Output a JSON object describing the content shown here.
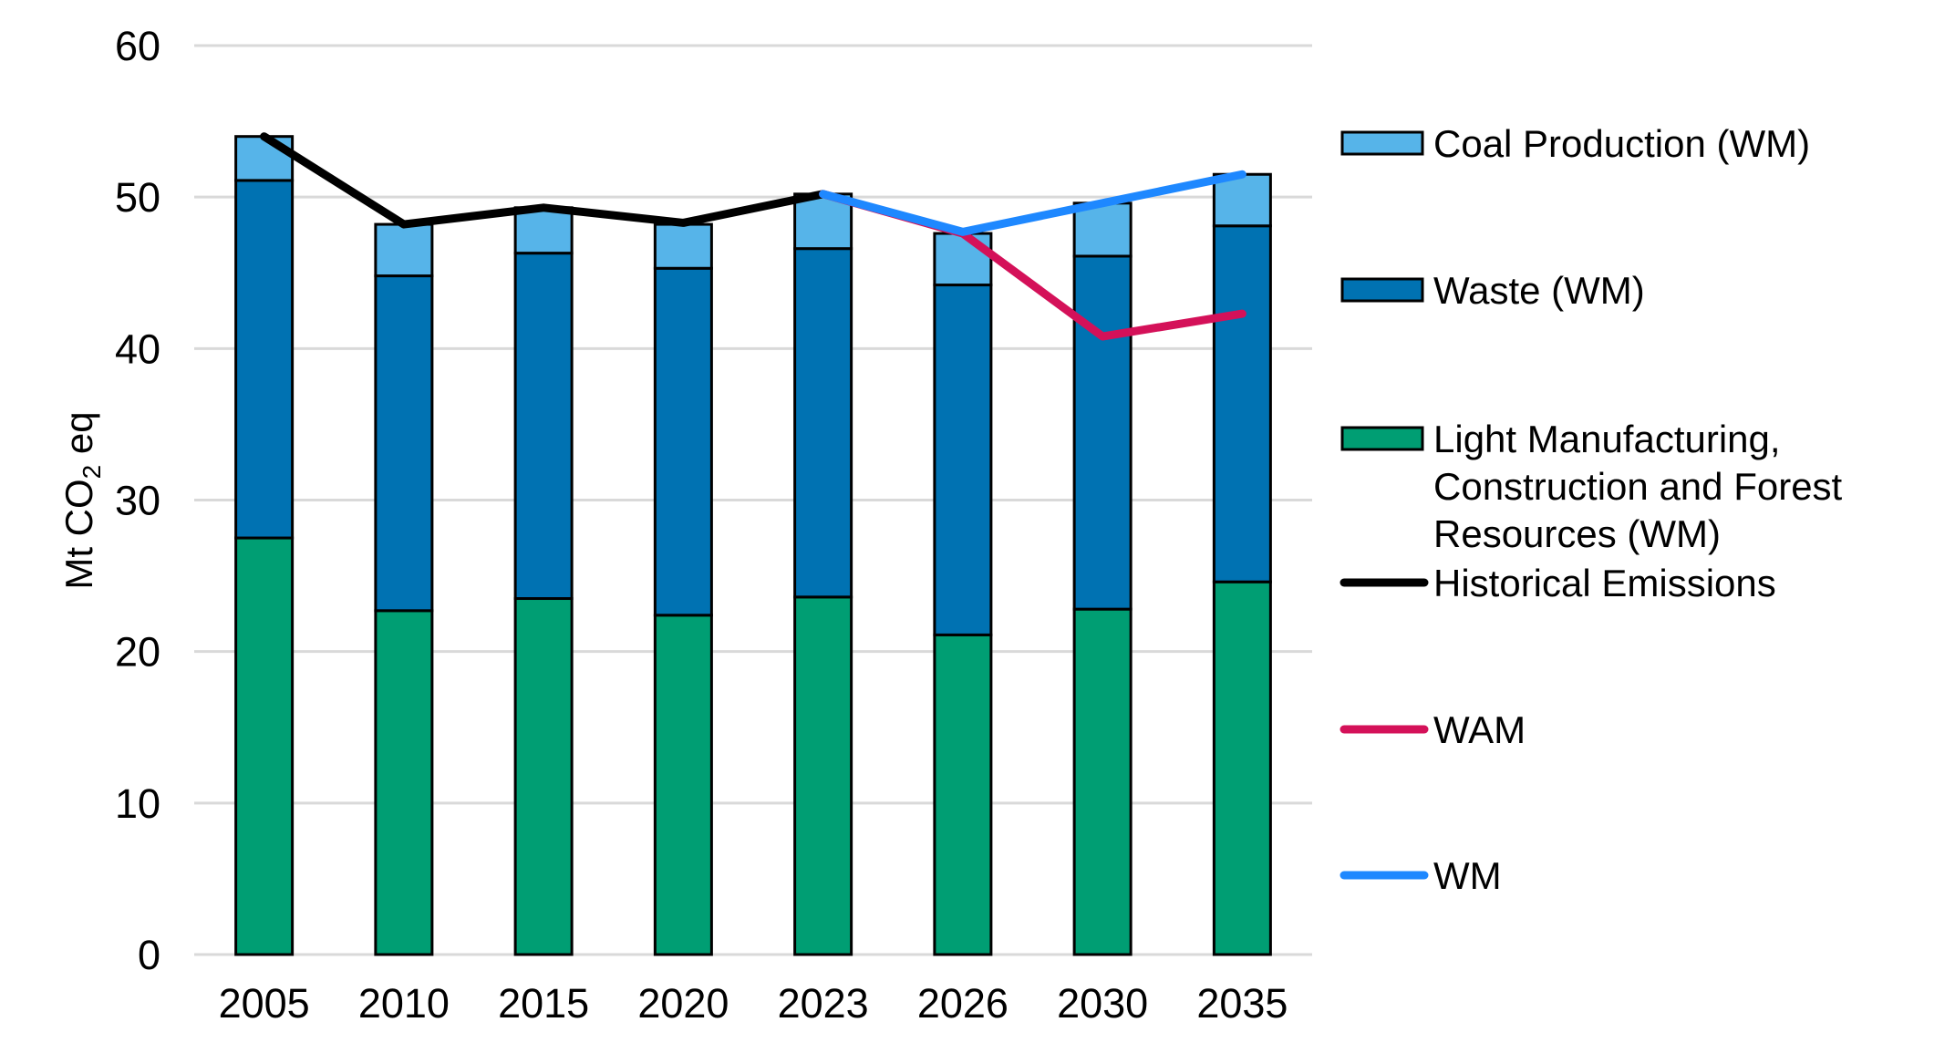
{
  "chart_data": {
    "type": "bar",
    "stacked": true,
    "title": "",
    "xlabel": "",
    "ylabel": {
      "prefix": "Mt CO",
      "subscript": "2",
      "suffix": " eq"
    },
    "ylim": [
      0,
      60
    ],
    "yticks": [
      0,
      10,
      20,
      30,
      40,
      50,
      60
    ],
    "grid": true,
    "legend_position": "right",
    "categories": [
      "2005",
      "2010",
      "2015",
      "2020",
      "2023",
      "2026",
      "2030",
      "2035"
    ],
    "series": [
      {
        "name": "Light Manufacturing, Construction and Forest Resources (WM)",
        "kind": "bar",
        "color": "#009E73",
        "values": [
          27.5,
          22.7,
          23.5,
          22.4,
          23.6,
          21.1,
          22.8,
          24.6
        ]
      },
      {
        "name": "Waste (WM)",
        "kind": "bar",
        "color": "#0072B2",
        "values": [
          23.6,
          22.1,
          22.8,
          22.9,
          23.0,
          23.1,
          23.3,
          23.5
        ]
      },
      {
        "name": "Coal Production (WM)",
        "kind": "bar",
        "color": "#56B4E9",
        "values": [
          2.9,
          3.4,
          3.0,
          2.9,
          3.6,
          3.4,
          3.5,
          3.4
        ]
      },
      {
        "name": "Historical Emissions",
        "kind": "line",
        "color": "#000000",
        "values": [
          54.0,
          48.2,
          49.3,
          48.3,
          50.2,
          null,
          null,
          null
        ]
      },
      {
        "name": "WAM",
        "kind": "line",
        "color": "#D41159",
        "values": [
          null,
          null,
          null,
          null,
          50.2,
          47.6,
          40.8,
          42.3
        ]
      },
      {
        "name": "WM",
        "kind": "line",
        "color": "#1E88FF",
        "values": [
          null,
          null,
          null,
          null,
          50.2,
          47.7,
          49.6,
          51.5
        ]
      }
    ],
    "legend": [
      {
        "label_lines": [
          "Coal Production (WM)"
        ],
        "kind": "box",
        "color": "#56B4E9"
      },
      {
        "label_lines": [
          "Waste (WM)"
        ],
        "kind": "box",
        "color": "#0072B2"
      },
      {
        "label_lines": [
          "Light Manufacturing,",
          "Construction and Forest",
          "Resources (WM)"
        ],
        "kind": "box",
        "color": "#009E73"
      },
      {
        "label_lines": [
          "Historical Emissions"
        ],
        "kind": "line",
        "color": "#000000"
      },
      {
        "label_lines": [
          "WAM"
        ],
        "kind": "line",
        "color": "#D41159"
      },
      {
        "label_lines": [
          "WM"
        ],
        "kind": "line",
        "color": "#1E88FF"
      }
    ],
    "gridline_color": "#D9D9D9"
  }
}
